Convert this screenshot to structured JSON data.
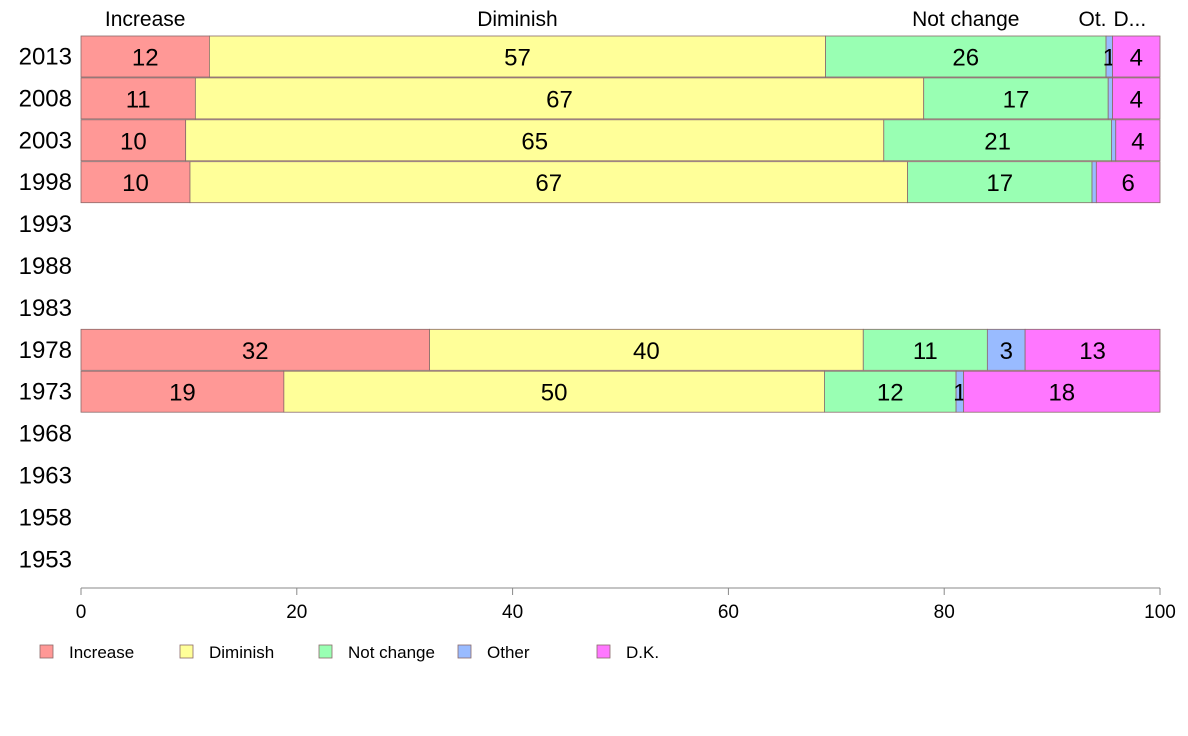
{
  "chart_data": {
    "type": "bar",
    "orientation": "horizontal",
    "stacked": true,
    "title": "",
    "xlabel": "",
    "ylabel": "",
    "xlim": [
      0,
      100
    ],
    "x_ticks": [
      0,
      20,
      40,
      60,
      80,
      100
    ],
    "grid": false,
    "legend_position": "bottom",
    "categories": [
      "2013",
      "2008",
      "2003",
      "1998",
      "1993",
      "1988",
      "1983",
      "1978",
      "1973",
      "1968",
      "1963",
      "1958",
      "1953"
    ],
    "series": [
      {
        "name": "Increase",
        "header": "Increase",
        "color": "#ff9896",
        "values": [
          11.9,
          10.6,
          9.7,
          10.1,
          null,
          null,
          null,
          32.3,
          18.8,
          null,
          null,
          null,
          null
        ],
        "labels": [
          "12",
          "11",
          "10",
          "10",
          "",
          "",
          "",
          "32",
          "19",
          "",
          "",
          "",
          ""
        ]
      },
      {
        "name": "Diminish",
        "header": "Diminish",
        "color": "#ffff99",
        "values": [
          57.1,
          67.5,
          64.7,
          66.5,
          null,
          null,
          null,
          40.2,
          50.1,
          null,
          null,
          null,
          null
        ],
        "labels": [
          "57",
          "67",
          "65",
          "67",
          "",
          "",
          "",
          "40",
          "50",
          "",
          "",
          "",
          ""
        ]
      },
      {
        "name": "Not change",
        "header": "Not change",
        "color": "#99ffb3",
        "values": [
          26.0,
          17.1,
          21.1,
          17.1,
          null,
          null,
          null,
          11.5,
          12.2,
          null,
          null,
          null,
          null
        ],
        "labels": [
          "26",
          "17",
          "21",
          "17",
          "",
          "",
          "",
          "11",
          "12",
          "",
          "",
          "",
          ""
        ]
      },
      {
        "name": "Other",
        "header": "Ot.",
        "color": "#99bbff",
        "values": [
          0.6,
          0.4,
          0.4,
          0.4,
          null,
          null,
          null,
          3.5,
          0.7,
          null,
          null,
          null,
          null
        ],
        "labels": [
          "1",
          "",
          "",
          "",
          "",
          "",
          "",
          "3",
          "1",
          "",
          "",
          "",
          ""
        ]
      },
      {
        "name": "D.K.",
        "header": "D...",
        "color": "#ff77ff",
        "values": [
          4.4,
          4.4,
          4.1,
          5.9,
          null,
          null,
          null,
          12.5,
          18.2,
          null,
          null,
          null,
          null
        ],
        "labels": [
          "4",
          "4",
          "4",
          "6",
          "",
          "",
          "",
          "13",
          "18",
          "",
          "",
          "",
          ""
        ]
      }
    ]
  }
}
